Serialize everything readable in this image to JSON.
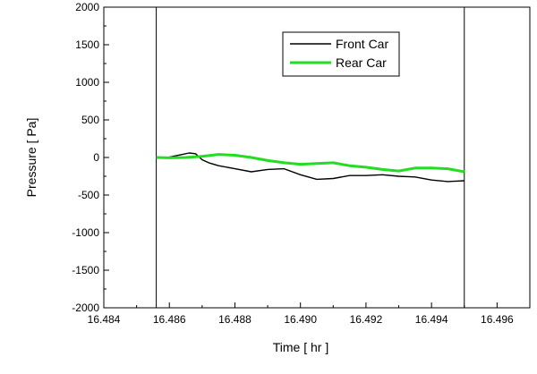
{
  "chart_data": {
    "type": "line",
    "xlabel": "Time [ hr ]",
    "ylabel": "Pressure [ Pa]",
    "xlim": [
      16.484,
      16.497
    ],
    "ylim": [
      -2000,
      2000
    ],
    "xticks": [
      16.484,
      16.486,
      16.488,
      16.49,
      16.492,
      16.494,
      16.496
    ],
    "xtick_labels": [
      "16.484",
      "16.486",
      "16.488",
      "16.490",
      "16.492",
      "16.494",
      "16.496"
    ],
    "yticks": [
      2000,
      1500,
      1000,
      500,
      0,
      -500,
      -1000,
      -1500,
      -2000
    ],
    "ytick_labels": [
      "2000",
      "1500",
      "1000",
      "500",
      "0",
      "-500",
      "-1000",
      "-1500",
      "-2000"
    ],
    "grid": false,
    "legend_position": "top-right",
    "vertical_markers": [
      16.4856,
      16.495
    ],
    "series": [
      {
        "name": "Front Car",
        "color": "#000000",
        "x": [
          16.4856,
          16.486,
          16.4864,
          16.4866,
          16.4868,
          16.487,
          16.4872,
          16.4875,
          16.488,
          16.4885,
          16.489,
          16.4895,
          16.49,
          16.4905,
          16.491,
          16.4915,
          16.492,
          16.4925,
          16.493,
          16.4935,
          16.494,
          16.4945,
          16.495
        ],
        "y": [
          0,
          5,
          40,
          60,
          50,
          -30,
          -70,
          -110,
          -150,
          -190,
          -160,
          -150,
          -230,
          -290,
          -280,
          -240,
          -240,
          -230,
          -250,
          -260,
          -300,
          -320,
          -310
        ]
      },
      {
        "name": "Rear Car",
        "color": "#22dd22",
        "x": [
          16.4856,
          16.486,
          16.4865,
          16.487,
          16.4875,
          16.488,
          16.4885,
          16.489,
          16.4895,
          16.49,
          16.4905,
          16.491,
          16.4915,
          16.492,
          16.4925,
          16.493,
          16.4935,
          16.494,
          16.4945,
          16.495
        ],
        "y": [
          0,
          -5,
          0,
          15,
          40,
          30,
          0,
          -40,
          -70,
          -90,
          -80,
          -70,
          -110,
          -130,
          -160,
          -180,
          -140,
          -140,
          -150,
          -190
        ]
      }
    ]
  }
}
